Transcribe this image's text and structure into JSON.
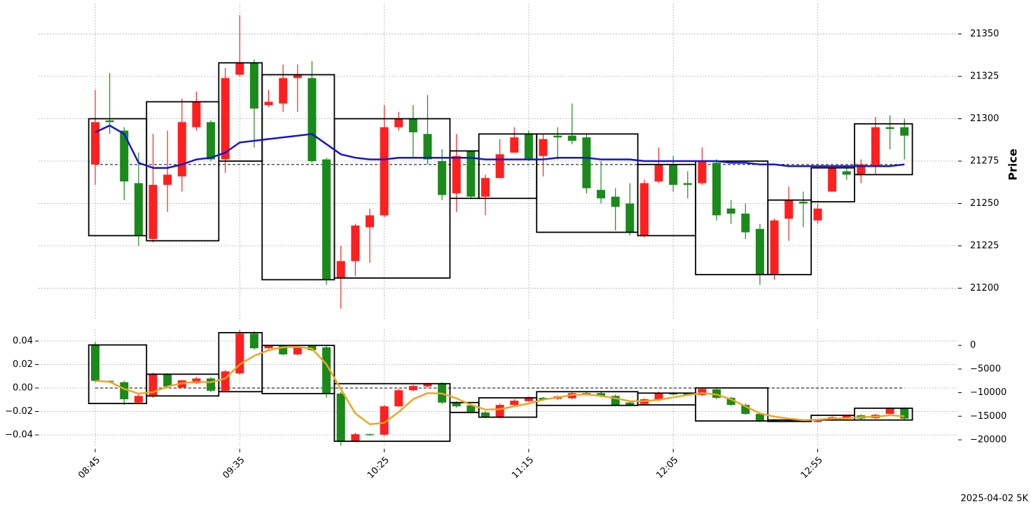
{
  "chart_data": [
    {
      "type": "candlestick",
      "ylabel": "Price",
      "annotation": "2025-04-02 5K",
      "up_color": "#ff1f1f",
      "down_color": "#1a8a1a",
      "ylim": [
        21182,
        21368
      ],
      "yticks": [
        21200,
        21225,
        21250,
        21275,
        21300,
        21325,
        21350
      ],
      "grid": true,
      "open": [
        21273,
        21299,
        21293,
        21262,
        21229,
        21261,
        21266,
        21295,
        21298,
        21276,
        21326,
        21333,
        21308,
        21309,
        21324,
        21324,
        21276,
        21206,
        21216,
        21236,
        21243,
        21295,
        21300,
        21291,
        21275,
        21256,
        21281,
        21254,
        21265,
        21280,
        21291,
        21278,
        21290,
        21290,
        21289,
        21258,
        21254,
        21250,
        21231,
        21263,
        21273,
        21262,
        21262,
        21274,
        21247,
        21244,
        21235,
        21208,
        21241,
        21251,
        21240,
        21257,
        21269,
        21267,
        21272,
        21295,
        21295
      ],
      "high": [
        21317,
        21327,
        21295,
        21280,
        21291,
        21293,
        21312,
        21316,
        21299,
        21330,
        21361,
        21335,
        21317,
        21332,
        21332,
        21334,
        21277,
        21225,
        21238,
        21247,
        21308,
        21304,
        21308,
        21314,
        21282,
        21291,
        21281,
        21267,
        21288,
        21295,
        21293,
        21291,
        21295,
        21309,
        21291,
        21275,
        21259,
        21262,
        21264,
        21283,
        21278,
        21269,
        21283,
        21276,
        21252,
        21250,
        21238,
        21241,
        21260,
        21257,
        21250,
        21271,
        21271,
        21276,
        21301,
        21302,
        21300
      ],
      "low": [
        21261,
        21291,
        21252,
        21225,
        21227,
        21245,
        21257,
        21293,
        21275,
        21268,
        21325,
        21283,
        21307,
        21304,
        21304,
        21274,
        21202,
        21188,
        21207,
        21215,
        21242,
        21293,
        21277,
        21273,
        21252,
        21245,
        21253,
        21243,
        21265,
        21280,
        21275,
        21266,
        21276,
        21285,
        21256,
        21250,
        21234,
        21231,
        21230,
        21262,
        21257,
        21253,
        21261,
        21240,
        21238,
        21229,
        21202,
        21205,
        21228,
        21236,
        21238,
        21257,
        21264,
        21262,
        21267,
        21282,
        21276
      ],
      "close": [
        21298,
        21298,
        21263,
        21231,
        21261,
        21267,
        21298,
        21310,
        21276,
        21324,
        21333,
        21306,
        21310,
        21324,
        21326,
        21275,
        21205,
        21216,
        21237,
        21243,
        21295,
        21300,
        21292,
        21276,
        21255,
        21278,
        21254,
        21265,
        21279,
        21289,
        21276,
        21288,
        21289,
        21287,
        21259,
        21253,
        21248,
        21233,
        21262,
        21273,
        21261,
        21261,
        21275,
        21243,
        21244,
        21233,
        21208,
        21240,
        21252,
        21250,
        21247,
        21271,
        21267,
        21273,
        21295,
        21294,
        21290
      ],
      "line": {
        "color": "#1414d2",
        "values": [
          21292,
          21296,
          21291,
          21274,
          21271,
          21271,
          21273,
          21276,
          21277,
          21280,
          21286,
          21287,
          21288,
          21289,
          21290,
          21291,
          21285,
          21279,
          21277,
          21276,
          21276,
          21277,
          21277,
          21277,
          21277,
          21277,
          21277,
          21276,
          21276,
          21276,
          21276,
          21276,
          21277,
          21277,
          21277,
          21276,
          21276,
          21276,
          21275,
          21275,
          21275,
          21275,
          21275,
          21275,
          21274,
          21274,
          21273,
          21273,
          21272,
          21272,
          21272,
          21272,
          21272,
          21272,
          21272,
          21272,
          21273
        ]
      },
      "hline": 21273,
      "boxes": [
        {
          "start": 0,
          "end": 3,
          "high": 21300,
          "low": 21231
        },
        {
          "start": 4,
          "end": 8,
          "high": 21310,
          "low": 21228
        },
        {
          "start": 9,
          "end": 11,
          "high": 21333,
          "low": 21275
        },
        {
          "start": 12,
          "end": 16,
          "high": 21326,
          "low": 21205
        },
        {
          "start": 17,
          "end": 24,
          "high": 21300,
          "low": 21206
        },
        {
          "start": 25,
          "end": 26,
          "high": 21281,
          "low": 21253
        },
        {
          "start": 27,
          "end": 30,
          "high": 21291,
          "low": 21253
        },
        {
          "start": 31,
          "end": 37,
          "high": 21291,
          "low": 21233
        },
        {
          "start": 38,
          "end": 41,
          "high": 21273,
          "low": 21231
        },
        {
          "start": 42,
          "end": 46,
          "high": 21275,
          "low": 21208
        },
        {
          "start": 47,
          "end": 49,
          "high": 21252,
          "low": 21208
        },
        {
          "start": 50,
          "end": 52,
          "high": 21271,
          "low": 21251
        },
        {
          "start": 53,
          "end": 56,
          "high": 21297,
          "low": 21267
        }
      ]
    },
    {
      "type": "candlestick",
      "axis": "y2",
      "up_color": "#ff1f1f",
      "down_color": "#1a8a1a",
      "categories": [
        "08:45",
        null,
        null,
        null,
        null,
        null,
        null,
        null,
        null,
        null,
        "09:35",
        null,
        null,
        null,
        null,
        null,
        null,
        null,
        null,
        null,
        "10:25",
        null,
        null,
        null,
        null,
        null,
        null,
        null,
        null,
        null,
        "11:15",
        null,
        null,
        null,
        null,
        null,
        null,
        null,
        null,
        null,
        "12:05",
        null,
        null,
        null,
        null,
        null,
        null,
        null,
        null,
        null,
        "12:55",
        null,
        null,
        null,
        null,
        null,
        null
      ],
      "ylim": [
        -0.05,
        0.05
      ],
      "yticks": [
        0.04,
        0.02,
        {
          "value": 0,
          "label": "0.00"
        },
        {
          "value": -0.02,
          "label": "−0.02"
        },
        {
          "value": -0.04,
          "label": "−0.04"
        }
      ],
      "y2lim": [
        -21450,
        3400
      ],
      "y2ticks": [
        0,
        {
          "value": -5000,
          "label": "−5000"
        },
        {
          "value": -10000,
          "label": "−10000"
        },
        {
          "value": -15000,
          "label": "−15000"
        },
        {
          "value": -20000,
          "label": "−20000"
        }
      ],
      "grid": true,
      "open": [
        100,
        -7500,
        -7800,
        -12100,
        -10700,
        -6100,
        -8900,
        -8000,
        -7000,
        -9600,
        -5900,
        2500,
        -600,
        -100,
        -1900,
        -100,
        -400,
        -10200,
        -20300,
        -18800,
        -18900,
        -12900,
        -9500,
        -8700,
        -8100,
        -12100,
        -12700,
        -14200,
        -15100,
        -12600,
        -11800,
        -11100,
        -11300,
        -11200,
        -10100,
        -10100,
        -10700,
        -12100,
        -12400,
        -11500,
        -10100,
        -10200,
        -10500,
        -9300,
        -11100,
        -12600,
        -14500,
        -15800,
        -15900,
        -16000,
        -16100,
        -15700,
        -15400,
        -14800,
        -15400,
        -14500,
        -13300
      ],
      "high": [
        700,
        -7400,
        -7500,
        -10200,
        -5800,
        -5900,
        -7300,
        -6700,
        -6700,
        -5200,
        3300,
        3000,
        0,
        100,
        0,
        100,
        -100,
        -9900,
        -18500,
        -18700,
        -12600,
        -9200,
        -8300,
        -7900,
        -7800,
        -11800,
        -12400,
        -13900,
        -12300,
        -11400,
        -10800,
        -10900,
        -10600,
        -9900,
        -9900,
        -9900,
        -10400,
        -11900,
        -11200,
        -9800,
        -9900,
        -10000,
        -8900,
        -9000,
        -10900,
        -12300,
        -14200,
        -15600,
        -15700,
        -15800,
        -15900,
        -15000,
        -14700,
        -14600,
        -14500,
        -13100,
        -13100
      ],
      "low": [
        -7800,
        -7800,
        -12600,
        -12300,
        -11100,
        -9000,
        -9000,
        -8100,
        -9900,
        -9900,
        -6200,
        -900,
        -700,
        -2100,
        -2100,
        -1200,
        -11100,
        -21200,
        -20400,
        -19100,
        -19100,
        -13000,
        -9700,
        -8900,
        -12400,
        -13200,
        -14400,
        -15400,
        -15400,
        -12900,
        -12000,
        -11700,
        -11500,
        -11400,
        -10600,
        -11000,
        -12900,
        -12900,
        -12600,
        -11800,
        -10600,
        -10700,
        -10700,
        -11400,
        -12800,
        -14700,
        -16300,
        -16200,
        -16200,
        -16300,
        -16300,
        -15900,
        -15600,
        -15700,
        -15600,
        -14700,
        -15800
      ],
      "close": [
        -7500,
        -7700,
        -11400,
        -10700,
        -6100,
        -8700,
        -7400,
        -7000,
        -9600,
        -5500,
        2500,
        -600,
        -100,
        -1900,
        -300,
        -1000,
        -10200,
        -20300,
        -18800,
        -18900,
        -12900,
        -9500,
        -8600,
        -8100,
        -12100,
        -12900,
        -14200,
        -15100,
        -12600,
        -11700,
        -11100,
        -11500,
        -10800,
        -10100,
        -10400,
        -10800,
        -12600,
        -12700,
        -11400,
        -10100,
        -10400,
        -10500,
        -9200,
        -11100,
        -12600,
        -14500,
        -16000,
        -16000,
        -16000,
        -16100,
        -16000,
        -15200,
        -14900,
        -15500,
        -14700,
        -13300,
        -15500
      ],
      "line": {
        "color": "#f0a51e",
        "values": [
          -7500,
          -7700,
          -9200,
          -10200,
          -9900,
          -8700,
          -8000,
          -7700,
          -7800,
          -7000,
          -4000,
          -2200,
          -1000,
          -400,
          -300,
          -700,
          -4000,
          -9300,
          -14400,
          -16700,
          -16400,
          -14100,
          -11400,
          -10100,
          -10200,
          -11200,
          -12600,
          -13600,
          -13500,
          -12900,
          -12300,
          -11500,
          -11000,
          -10500,
          -10400,
          -10700,
          -11200,
          -11800,
          -11800,
          -11500,
          -11000,
          -10500,
          -10100,
          -10400,
          -11400,
          -12900,
          -14400,
          -15100,
          -15500,
          -15800,
          -15700,
          -15500,
          -15400,
          -15200,
          -15100,
          -14800,
          -15000
        ]
      },
      "hline": 0,
      "boxes": [
        {
          "start": 0,
          "end": 3,
          "high": 100,
          "low": -12300
        },
        {
          "start": 4,
          "end": 8,
          "high": -6100,
          "low": -10700
        },
        {
          "start": 9,
          "end": 11,
          "high": 2700,
          "low": -9800
        },
        {
          "start": 12,
          "end": 16,
          "high": 0,
          "low": -10200
        },
        {
          "start": 17,
          "end": 24,
          "high": -8100,
          "low": -20300
        },
        {
          "start": 25,
          "end": 26,
          "high": -12100,
          "low": -14200
        },
        {
          "start": 27,
          "end": 30,
          "high": -11100,
          "low": -15200
        },
        {
          "start": 31,
          "end": 37,
          "high": -9800,
          "low": -12700
        },
        {
          "start": 38,
          "end": 41,
          "high": -10100,
          "low": -12600
        },
        {
          "start": 42,
          "end": 46,
          "high": -9000,
          "low": -16000
        },
        {
          "start": 47,
          "end": 49,
          "high": -15800,
          "low": -16100
        },
        {
          "start": 50,
          "end": 52,
          "high": -14800,
          "low": -15800
        },
        {
          "start": 53,
          "end": 56,
          "high": -13300,
          "low": -15800
        }
      ]
    }
  ]
}
